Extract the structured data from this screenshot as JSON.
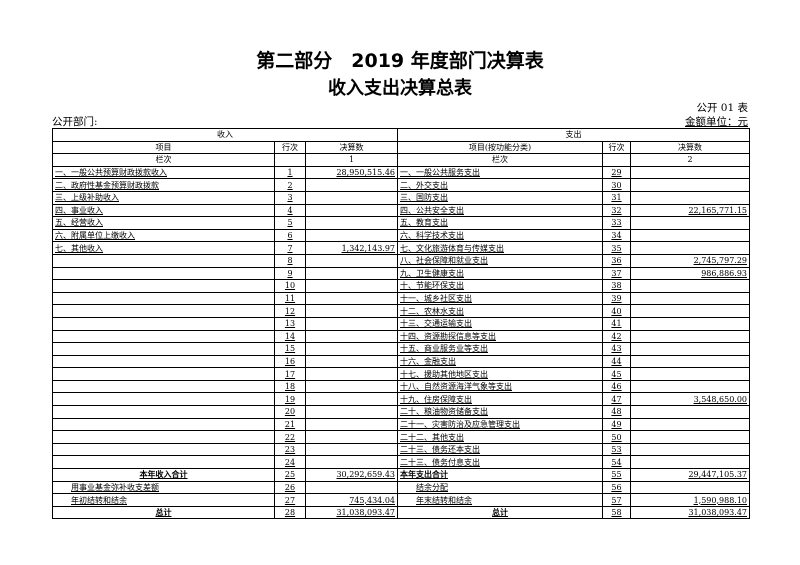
{
  "title": "第二部分　2019 年度部门决算表",
  "subtitle": "收入支出决算总表",
  "table_code": "公开 01 表",
  "department_label": "公开部门:",
  "unit_label": "金额单位：元",
  "headers": {
    "income": "收入",
    "expense": "支出",
    "item": "项目",
    "item_func": "项目(按功能分类)",
    "line_no": "行次",
    "amount": "决算数",
    "column_no": "栏次",
    "col1": "1",
    "col2": "2"
  },
  "income_rows": [
    {
      "item": "一、一般公共预算财政拨款收入",
      "no": "1",
      "amount": "28,950,515.46"
    },
    {
      "item": "二、政府性基金预算财政拨款",
      "no": "2",
      "amount": ""
    },
    {
      "item": "三、上级补助收入",
      "no": "3",
      "amount": ""
    },
    {
      "item": "四、事业收入",
      "no": "4",
      "amount": ""
    },
    {
      "item": "五、经营收入",
      "no": "5",
      "amount": ""
    },
    {
      "item": "六、附属单位上缴收入",
      "no": "6",
      "amount": ""
    },
    {
      "item": "七、其他收入",
      "no": "7",
      "amount": "1,342,143.97"
    },
    {
      "item": "",
      "no": "8",
      "amount": ""
    },
    {
      "item": "",
      "no": "9",
      "amount": ""
    },
    {
      "item": "",
      "no": "10",
      "amount": ""
    },
    {
      "item": "",
      "no": "11",
      "amount": ""
    },
    {
      "item": "",
      "no": "12",
      "amount": ""
    },
    {
      "item": "",
      "no": "13",
      "amount": ""
    },
    {
      "item": "",
      "no": "14",
      "amount": ""
    },
    {
      "item": "",
      "no": "15",
      "amount": ""
    },
    {
      "item": "",
      "no": "16",
      "amount": ""
    },
    {
      "item": "",
      "no": "17",
      "amount": ""
    },
    {
      "item": "",
      "no": "18",
      "amount": ""
    },
    {
      "item": "",
      "no": "19",
      "amount": ""
    },
    {
      "item": "",
      "no": "20",
      "amount": ""
    },
    {
      "item": "",
      "no": "21",
      "amount": ""
    },
    {
      "item": "",
      "no": "22",
      "amount": ""
    },
    {
      "item": "",
      "no": "23",
      "amount": ""
    },
    {
      "item": "",
      "no": "24",
      "amount": ""
    },
    {
      "item": "本年收入合计",
      "no": "25",
      "amount": "30,292,659.43",
      "style": "total"
    },
    {
      "item": "用事业基金弥补收支差额",
      "no": "26",
      "amount": "",
      "style": "indent"
    },
    {
      "item": "年初结转和结余",
      "no": "27",
      "amount": "745,434.04",
      "style": "indent"
    },
    {
      "item": "总计",
      "no": "28",
      "amount": "31,038,093.47",
      "style": "total"
    }
  ],
  "expense_rows": [
    {
      "item": "一、一般公共服务支出",
      "no": "29",
      "amount": ""
    },
    {
      "item": "二、外交支出",
      "no": "30",
      "amount": ""
    },
    {
      "item": "三、国防支出",
      "no": "31",
      "amount": ""
    },
    {
      "item": "四、公共安全支出",
      "no": "32",
      "amount": "22,165,771.15"
    },
    {
      "item": "五、教育支出",
      "no": "33",
      "amount": ""
    },
    {
      "item": "六、科学技术支出",
      "no": "34",
      "amount": ""
    },
    {
      "item": "七、文化旅游体育与传媒支出",
      "no": "35",
      "amount": ""
    },
    {
      "item": "八、社会保障和就业支出",
      "no": "36",
      "amount": "2,745,797.29"
    },
    {
      "item": "九、卫生健康支出",
      "no": "37",
      "amount": "986,886.93"
    },
    {
      "item": "十、节能环保支出",
      "no": "38",
      "amount": ""
    },
    {
      "item": "十一、城乡社区支出",
      "no": "39",
      "amount": ""
    },
    {
      "item": "十二、农林水支出",
      "no": "40",
      "amount": ""
    },
    {
      "item": "十三、交通运输支出",
      "no": "41",
      "amount": ""
    },
    {
      "item": "十四、资源勘探信息等支出",
      "no": "42",
      "amount": ""
    },
    {
      "item": "十五、商业服务业等支出",
      "no": "43",
      "amount": ""
    },
    {
      "item": "十六、金融支出",
      "no": "44",
      "amount": ""
    },
    {
      "item": "十七、援助其他地区支出",
      "no": "45",
      "amount": ""
    },
    {
      "item": "十八、自然资源海洋气象等支出",
      "no": "46",
      "amount": ""
    },
    {
      "item": "十九、住房保障支出",
      "no": "47",
      "amount": "3,548,650.00"
    },
    {
      "item": "二十、粮油物资储备支出",
      "no": "48",
      "amount": ""
    },
    {
      "item": "二十一、灾害防治及应急管理支出",
      "no": "49",
      "amount": ""
    },
    {
      "item": "二十二、其他支出",
      "no": "50",
      "amount": ""
    },
    {
      "item": "二十三、债务还本支出",
      "no": "53",
      "amount": ""
    },
    {
      "item": "二十三、债务付息支出",
      "no": "54",
      "amount": ""
    },
    {
      "item": "本年支出合计",
      "no": "55",
      "amount": "29,447,105.37",
      "style": "total-left"
    },
    {
      "item": "结余分配",
      "no": "56",
      "amount": "",
      "style": "indent"
    },
    {
      "item": "年末结转和结余",
      "no": "57",
      "amount": "1,590,988.10",
      "style": "indent"
    },
    {
      "item": "总计",
      "no": "58",
      "amount": "31,038,093.47",
      "style": "total"
    }
  ]
}
